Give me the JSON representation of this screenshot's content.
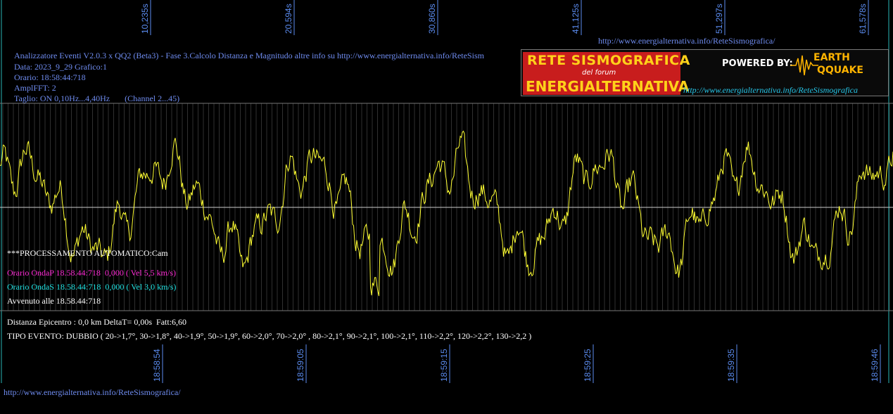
{
  "header": {
    "url_top": "http://www.energialternativa.info/ReteSismografica/",
    "url_bottom": "http://www.energialternativa.info/ReteSismografica/",
    "info_lines": [
      "Analizzatore Eventi V2.0.3 x QQ2 (Beta3) - Fase 3.Calcolo Distanza e Magnitudo altre info su http://www.energialternativa.info/ReteSism",
      "Data: 2023_9_29 Grafico:1",
      "Orario: 18:58:44:718",
      "AmplFFT: 2",
      "Taglio: ON 0,10Hz...4,40Hz       (Channel 2...45)"
    ]
  },
  "banner": {
    "title_line1": "RETE SISMOGRAFICA",
    "title_line2": "del forum",
    "title_line3": "ENERGIALTERNATIVA",
    "powered_by": "POWERED BY:",
    "logo_line1": "EARTH",
    "logo_line2": "QQUAKE",
    "url": "http://www.energialternativa.info/ReteSismografica"
  },
  "analysis": {
    "processing": "***PROCESSAMENTO AUTOMATICO:Cam",
    "onda_p": "Orario OndaP 18.58.44:718  0,000 ( Vel 5,5 km/s)",
    "onda_s": "Orario OndaS 18.58.44:718  0,000 ( Vel 3,0 km/s)",
    "avvenuto": "Avvenuto alle 18.58.44:718",
    "distanza": "Distanza Epicentro : 0,0 km DeltaT= 0,00s  Fatt:6,60",
    "tipo_evento": "TIPO EVENTO: DUBBIO ( 20->1,7°, 30->1,8°, 40->1,9°, 50->1,9°, 60->2,0°, 70->2,0° , 80->2,1°, 90->2,1°, 100->2,1°, 110->2,2°, 120->2,2°, 130->2,2 )"
  },
  "colors": {
    "signal": "#ffff33",
    "grid": "#555555",
    "tick_text": "#5b8cf0",
    "onda_p": "#ff2bd6",
    "onda_s": "#22e3e3"
  },
  "chart_data": {
    "type": "line",
    "top_ticks": [
      "10,235s",
      "20,594s",
      "30,860s",
      "41,125s",
      "51,297s",
      "61,578s"
    ],
    "bottom_ticks": [
      "18:58:54",
      "18:59:05",
      "18:59:15",
      "18:59:25",
      "18:59:35",
      "18:59:46"
    ],
    "x_range_s": [
      0,
      63
    ],
    "y_range": [
      -1,
      1
    ],
    "grid": true,
    "samples_per_second": 20
  }
}
